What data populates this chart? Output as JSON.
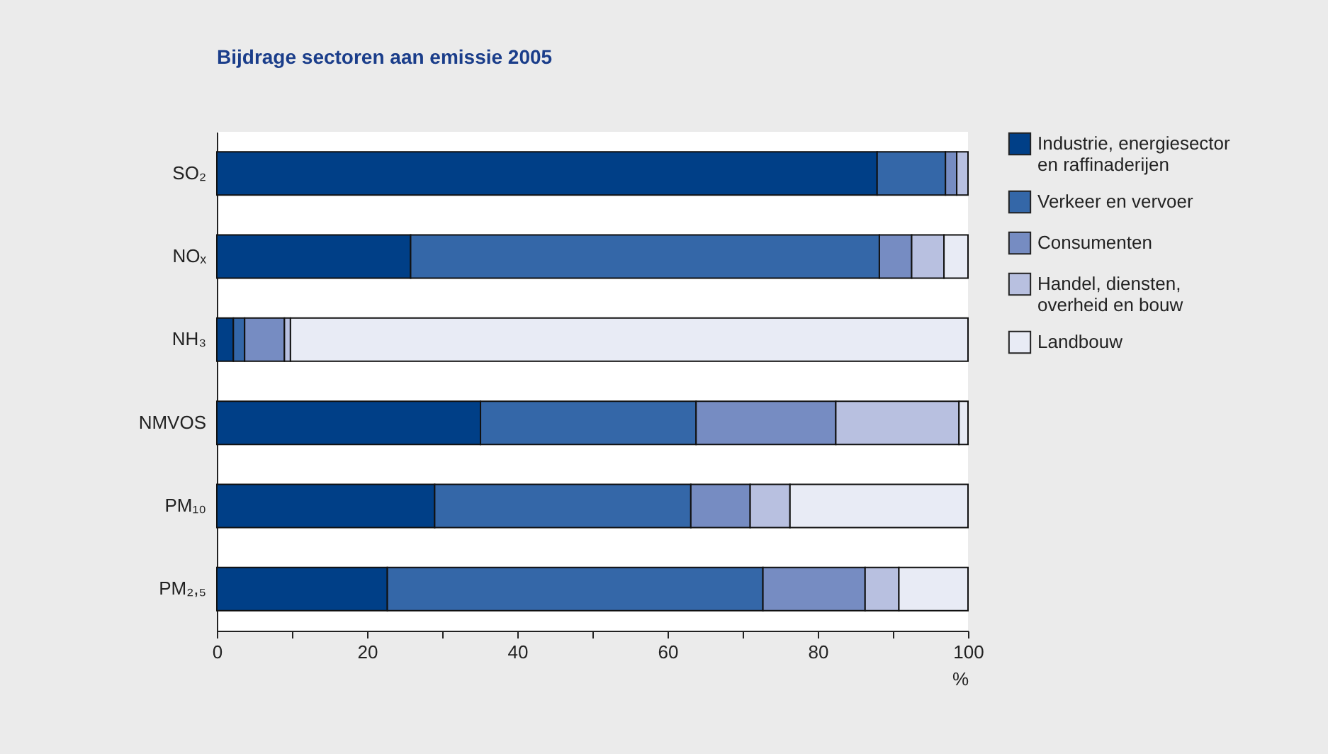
{
  "chart_data": {
    "type": "bar",
    "orientation": "horizontal",
    "stacked": true,
    "title": "Bijdrage sectoren aan emissie 2005",
    "xlabel": "%",
    "categories": [
      "SO₂",
      "NOₓ",
      "NH₃",
      "NMVOS",
      "PM₁₀",
      "PM₂,₅"
    ],
    "series": [
      {
        "name": "Industrie, energiesector en raffinaderijen",
        "color": "#003f87",
        "values": [
          87.9,
          25.8,
          2.2,
          35.1,
          29,
          22.7
        ]
      },
      {
        "name": "Verkeer en vervoer",
        "color": "#3467a8",
        "values": [
          9.1,
          62.4,
          1.5,
          28.7,
          34.1,
          50
        ]
      },
      {
        "name": "Consumenten",
        "color": "#768cc2",
        "values": [
          1.5,
          4.3,
          5.3,
          18.6,
          7.9,
          13.6
        ]
      },
      {
        "name": "Handel, diensten, overheid en bouw",
        "color": "#b8c0e0",
        "values": [
          1.5,
          4.3,
          0.8,
          16.4,
          5.3,
          4.5
        ]
      },
      {
        "name": "Landbouw",
        "color": "#e8ebf5",
        "values": [
          null,
          3.2,
          90.2,
          1.2,
          23.7,
          9.2
        ]
      }
    ],
    "xlim": [
      0,
      100
    ],
    "xticks": [
      0,
      {
        "value": 10,
        "label": null
      },
      20,
      {
        "value": 30,
        "label": null
      },
      40,
      {
        "value": 50,
        "label": null
      },
      60,
      {
        "value": 70,
        "label": null
      },
      80,
      {
        "value": 90,
        "label": null
      },
      100
    ],
    "grid": false,
    "legend": "top right"
  }
}
